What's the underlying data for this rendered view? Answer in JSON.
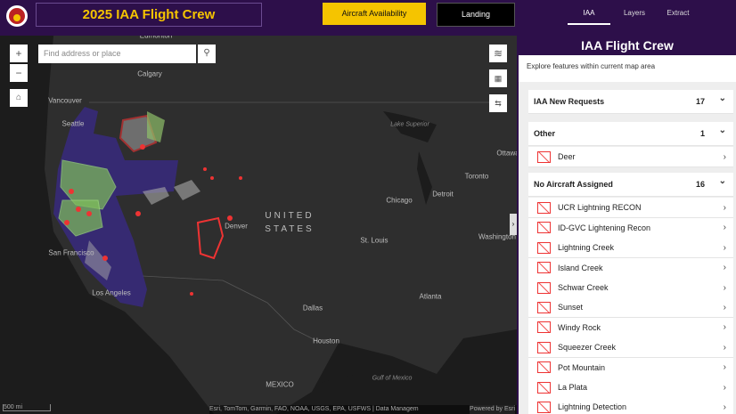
{
  "header": {
    "title": "2025 IAA Flight Crew",
    "buttons": [
      "Aircraft Availability",
      "Landing"
    ],
    "tabs": [
      "IAA",
      "Layers",
      "Extract"
    ]
  },
  "map": {
    "search_placeholder": "Find address or place",
    "labels": [
      {
        "text": "Edmonton",
        "size": "s"
      },
      {
        "text": "Calgary",
        "size": "s"
      },
      {
        "text": "Vancouver",
        "size": "s"
      },
      {
        "text": "Seattle",
        "size": "s"
      },
      {
        "text": "Lake Superior",
        "size": "xs"
      },
      {
        "text": "Ottawa",
        "size": "s"
      },
      {
        "text": "Toronto",
        "size": "s"
      },
      {
        "text": "Detroit",
        "size": "s"
      },
      {
        "text": "Chicago",
        "size": "s"
      },
      {
        "text": "UNITED STATES",
        "size": "l"
      },
      {
        "text": "Denver",
        "size": "s"
      },
      {
        "text": "St. Louis",
        "size": "s"
      },
      {
        "text": "Washington",
        "size": "s"
      },
      {
        "text": "San Francisco",
        "size": "s"
      },
      {
        "text": "Los Angeles",
        "size": "s"
      },
      {
        "text": "Atlanta",
        "size": "s"
      },
      {
        "text": "Dallas",
        "size": "s"
      },
      {
        "text": "Houston",
        "size": "s"
      },
      {
        "text": "Gulf of Mexico",
        "size": "xs"
      },
      {
        "text": "MEXICO",
        "size": "s"
      }
    ],
    "scale": "500 mi",
    "attribution": "Esri, TomTom, Garmin, FAO, NOAA, USGS, EPA, USFWS | Data Managem",
    "powered": "Powered by Esri"
  },
  "panel": {
    "title": "IAA Flight Crew",
    "subtitle": "Explore features within current map area",
    "groups": [
      {
        "name": "IAA New Requests",
        "count": "17"
      },
      {
        "name": "Other",
        "count": "1",
        "items": [
          "Deer"
        ]
      },
      {
        "name": "No Aircraft Assigned",
        "count": "16",
        "items": [
          "UCR Lightning RECON",
          "ID-GVC Lightening Recon",
          "Lightning Creek",
          "Island Creek",
          "Schwar Creek",
          "Sunset",
          "Windy Rock",
          "Squeezer Creek",
          "Pot Mountain",
          "La Plata",
          "Lightning Detection"
        ]
      }
    ]
  }
}
